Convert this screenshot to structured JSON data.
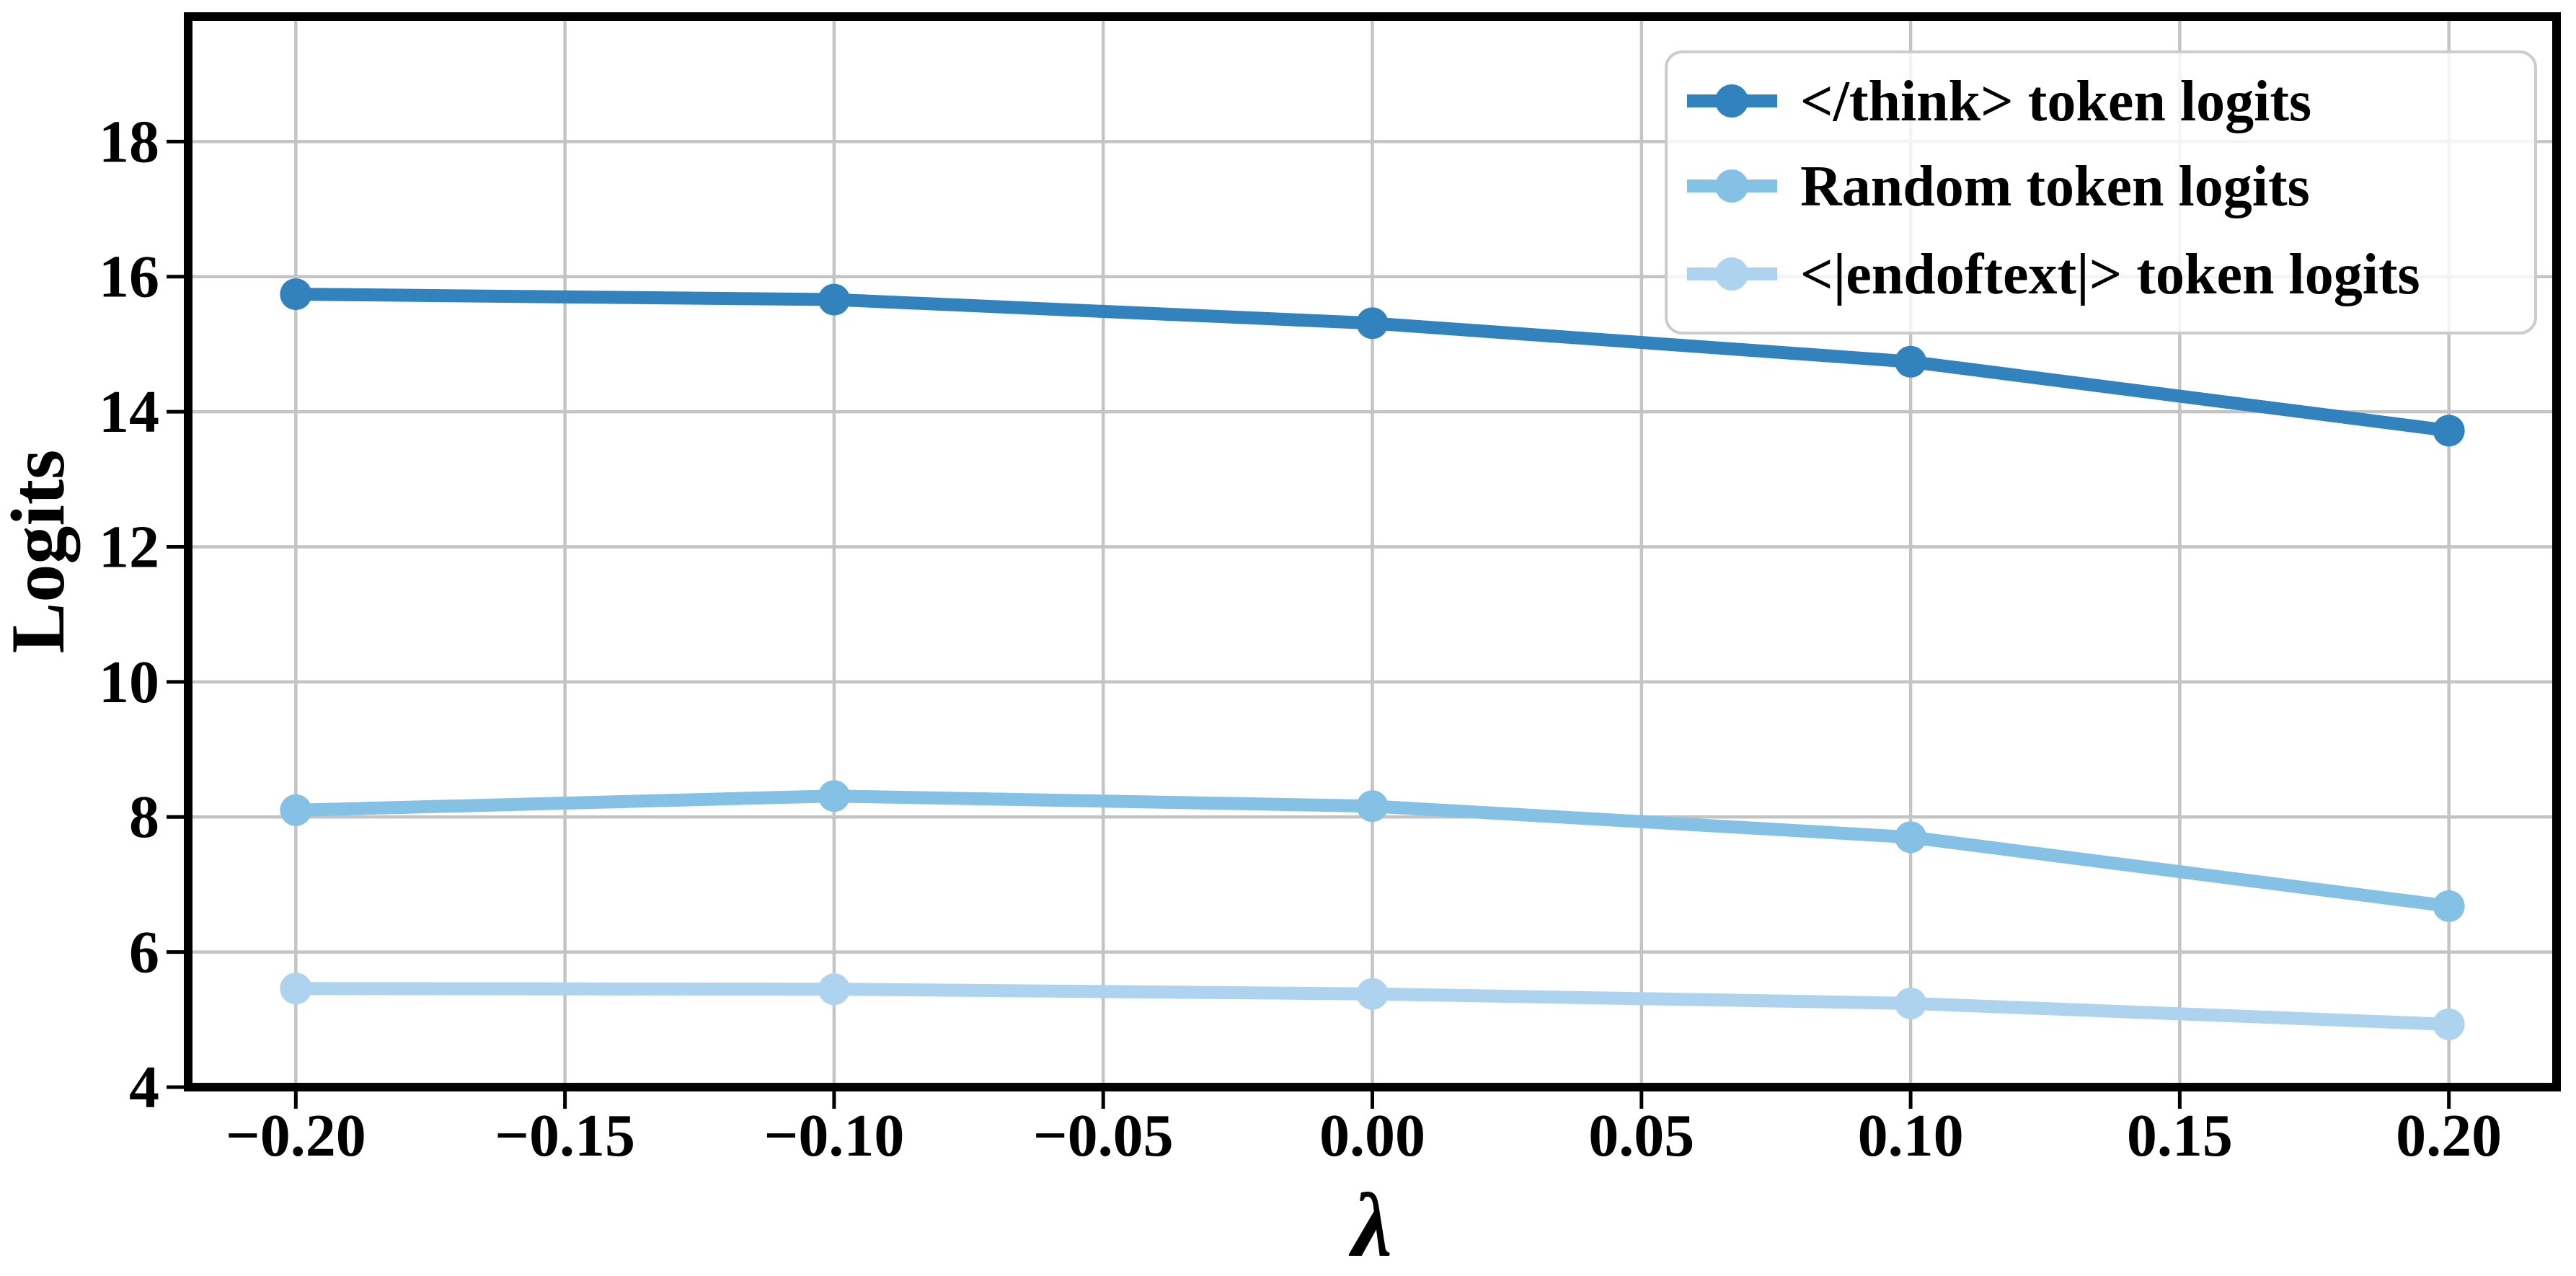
{
  "chart_data": {
    "type": "line",
    "title": "",
    "xlabel": "λ",
    "ylabel": "Logits",
    "x": [
      -0.2,
      -0.1,
      0.0,
      0.1,
      0.2
    ],
    "series": [
      {
        "name": "</think> token logits",
        "color": "#3182bd",
        "values": [
          15.74,
          15.66,
          15.31,
          14.74,
          13.72
        ]
      },
      {
        "name": "Random token logits",
        "color": "#85c1e5",
        "values": [
          8.1,
          8.31,
          8.16,
          7.7,
          6.68
        ]
      },
      {
        "name": "<|endoftext|> token logits",
        "color": "#aed3ee",
        "values": [
          5.46,
          5.45,
          5.38,
          5.24,
          4.93
        ]
      }
    ],
    "xticks": {
      "values": [
        -0.2,
        -0.15,
        -0.1,
        -0.05,
        0.0,
        0.05,
        0.1,
        0.15,
        0.2
      ],
      "labels": [
        "−0.20",
        "−0.15",
        "−0.10",
        "−0.05",
        "0.00",
        "0.05",
        "0.10",
        "0.15",
        "0.20"
      ]
    },
    "yticks": {
      "values": [
        4,
        6,
        8,
        10,
        12,
        14,
        16,
        18
      ],
      "labels": [
        "4",
        "6",
        "8",
        "10",
        "12",
        "14",
        "16",
        "18"
      ]
    },
    "xlim": [
      -0.22,
      0.22
    ],
    "ylim": [
      4,
      19.85
    ],
    "grid": true,
    "legend_position": "upper right",
    "line_style": "solid with circle markers",
    "grid_color": "#c4c4c4",
    "axis_color": "#000000",
    "legend_border_color": "#cccccc"
  }
}
